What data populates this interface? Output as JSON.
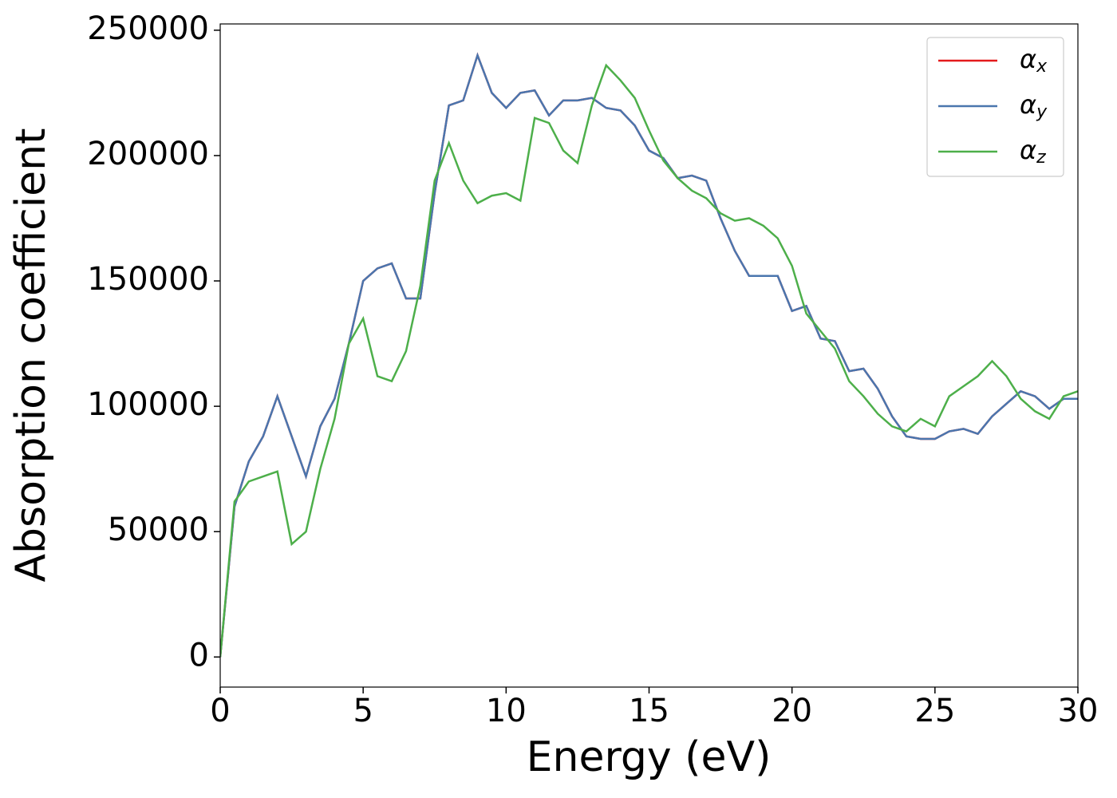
{
  "chart_data": {
    "type": "line",
    "xlabel": "Energy (eV)",
    "ylabel": "Absorption coefficient",
    "x": [
      0,
      0.5,
      1,
      1.5,
      2,
      2.5,
      3,
      3.5,
      4,
      4.5,
      5,
      5.5,
      6,
      6.5,
      7,
      7.5,
      8,
      8.5,
      9,
      9.5,
      10,
      10.5,
      11,
      11.5,
      12,
      12.5,
      13,
      13.5,
      14,
      14.5,
      15,
      15.5,
      16,
      16.5,
      17,
      17.5,
      18,
      18.5,
      19,
      19.5,
      20,
      20.5,
      21,
      21.5,
      22,
      22.5,
      23,
      23.5,
      24,
      24.5,
      25,
      25.5,
      26,
      26.5,
      27,
      27.5,
      28,
      28.5,
      29,
      29.5,
      30
    ],
    "series": [
      {
        "name": "αx",
        "color": "#e41a1c",
        "values": [
          0,
          60000,
          78000,
          88000,
          104000,
          88000,
          72000,
          92000,
          103000,
          125000,
          150000,
          155000,
          157000,
          143000,
          143000,
          185000,
          220000,
          222000,
          240000,
          225000,
          219000,
          225000,
          226000,
          216000,
          222000,
          222000,
          223000,
          219000,
          218000,
          212000,
          202000,
          199000,
          191000,
          192000,
          190000,
          175000,
          162000,
          152000,
          152000,
          152000,
          138000,
          140000,
          127000,
          126000,
          114000,
          115000,
          107000,
          96000,
          88000,
          87000,
          87000,
          90000,
          91000,
          89000,
          96000,
          101000,
          106000,
          104000,
          99000,
          103000,
          103000
        ]
      },
      {
        "name": "αy",
        "color": "#4a76ae",
        "values": [
          0,
          60000,
          78000,
          88000,
          104000,
          88000,
          72000,
          92000,
          103000,
          125000,
          150000,
          155000,
          157000,
          143000,
          143000,
          185000,
          220000,
          222000,
          240000,
          225000,
          219000,
          225000,
          226000,
          216000,
          222000,
          222000,
          223000,
          219000,
          218000,
          212000,
          202000,
          199000,
          191000,
          192000,
          190000,
          175000,
          162000,
          152000,
          152000,
          152000,
          138000,
          140000,
          127000,
          126000,
          114000,
          115000,
          107000,
          96000,
          88000,
          87000,
          87000,
          90000,
          91000,
          89000,
          96000,
          101000,
          106000,
          104000,
          99000,
          103000,
          103000
        ]
      },
      {
        "name": "αz",
        "color": "#4daf4a",
        "values": [
          0,
          62000,
          70000,
          72000,
          74000,
          45000,
          50000,
          75000,
          95000,
          125000,
          135000,
          112000,
          110000,
          122000,
          148000,
          190000,
          205000,
          190000,
          181000,
          184000,
          185000,
          182000,
          215000,
          213000,
          202000,
          197000,
          220000,
          236000,
          230000,
          223000,
          210000,
          198000,
          191000,
          186000,
          183000,
          177000,
          174000,
          175000,
          172000,
          167000,
          156000,
          137000,
          130000,
          123000,
          110000,
          104000,
          97000,
          92000,
          90000,
          95000,
          92000,
          104000,
          108000,
          112000,
          118000,
          112000,
          103000,
          98000,
          95000,
          104000,
          106000
        ]
      }
    ],
    "xlim": [
      0,
      30
    ],
    "xticks": [
      0,
      5,
      10,
      15,
      20,
      25,
      30
    ],
    "ylim": [
      -12000,
      252500
    ],
    "yticks": [
      0,
      50000,
      100000,
      150000,
      200000,
      250000
    ],
    "legend": "upper right",
    "grid": false
  }
}
